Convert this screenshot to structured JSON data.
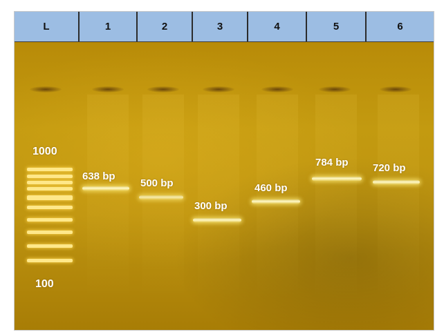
{
  "lanes": [
    {
      "label": "L",
      "width": 94
    },
    {
      "label": "1",
      "width": 84
    },
    {
      "label": "2",
      "width": 80
    },
    {
      "label": "3",
      "width": 80
    },
    {
      "label": "4",
      "width": 85
    },
    {
      "label": "5",
      "width": 86
    },
    {
      "label": "6",
      "width": 97
    }
  ],
  "ladder": {
    "top_label": "1000",
    "bottom_label": "100"
  },
  "bands": [
    {
      "lane": "1",
      "label": "638 bp"
    },
    {
      "lane": "2",
      "label": "500 bp"
    },
    {
      "lane": "3",
      "label": "300 bp"
    },
    {
      "lane": "4",
      "label": "460 bp"
    },
    {
      "lane": "5",
      "label": "784 bp"
    },
    {
      "lane": "6",
      "label": "720 bp"
    }
  ]
}
